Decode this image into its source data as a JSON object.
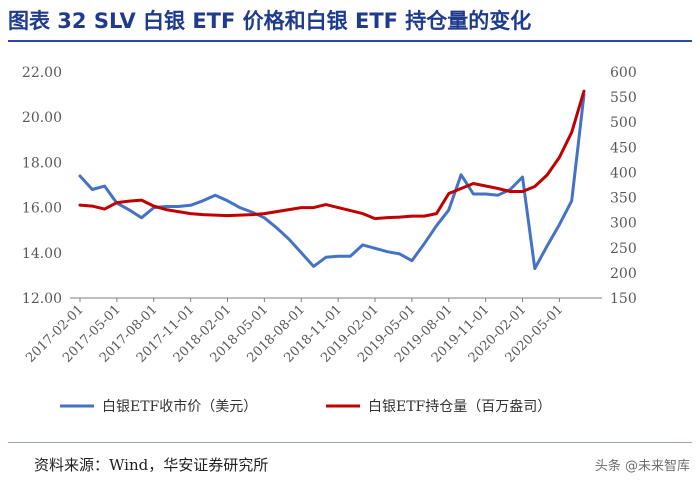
{
  "header": {
    "title": "图表 32 SLV 白银 ETF 价格和白银 ETF 持仓量的变化"
  },
  "footer": {
    "source": "资料来源：Wind，华安证券研究所",
    "watermark": "头条 @未来智库"
  },
  "colors": {
    "price": "#4472c4",
    "holdings": "#c00000",
    "title": "#1f3b8c",
    "axis": "#7f7f7f"
  },
  "chart_data": {
    "type": "line",
    "title": "",
    "x_tick_labels": [
      "2017-02-01",
      "2017-05-01",
      "2017-08-01",
      "2017-11-01",
      "2018-02-01",
      "2018-05-01",
      "2018-08-01",
      "2018-11-01",
      "2019-02-01",
      "2019-05-01",
      "2019-08-01",
      "2019-11-01",
      "2020-02-01",
      "2020-05-01"
    ],
    "y_left": {
      "range": [
        12,
        22
      ],
      "ticks": [
        "12.00",
        "14.00",
        "16.00",
        "18.00",
        "20.00",
        "22.00"
      ]
    },
    "y_right": {
      "range": [
        150,
        600
      ],
      "ticks": [
        "150",
        "200",
        "250",
        "300",
        "350",
        "400",
        "450",
        "500",
        "550",
        "600"
      ]
    },
    "grid": false,
    "legend_position": "bottom",
    "series": [
      {
        "name": "白银ETF收市价（美元）",
        "axis": "left",
        "x": [
          "2017-02",
          "2017-03",
          "2017-04",
          "2017-05",
          "2017-06",
          "2017-07",
          "2017-08",
          "2017-09",
          "2017-10",
          "2017-11",
          "2017-12",
          "2018-01",
          "2018-02",
          "2018-03",
          "2018-04",
          "2018-05",
          "2018-06",
          "2018-07",
          "2018-08",
          "2018-09",
          "2018-10",
          "2018-11",
          "2018-12",
          "2019-01",
          "2019-02",
          "2019-03",
          "2019-04",
          "2019-05",
          "2019-06",
          "2019-07",
          "2019-08",
          "2019-09",
          "2019-10",
          "2019-11",
          "2019-12",
          "2020-01",
          "2020-02",
          "2020-03",
          "2020-04",
          "2020-05",
          "2020-06",
          "2020-07"
        ],
        "values": [
          17.4,
          16.8,
          16.95,
          16.2,
          15.9,
          15.55,
          16.0,
          16.05,
          16.05,
          16.1,
          16.3,
          16.55,
          16.3,
          16.0,
          15.8,
          15.55,
          15.1,
          14.6,
          14.0,
          13.4,
          13.8,
          13.85,
          13.85,
          14.35,
          14.2,
          14.05,
          13.95,
          13.65,
          14.4,
          15.2,
          15.9,
          17.45,
          16.6,
          16.6,
          16.55,
          16.8,
          17.35,
          13.3,
          14.3,
          15.25,
          16.3,
          21.0
        ]
      },
      {
        "name": "白银ETF持仓量（百万盎司）",
        "axis": "right",
        "x": [
          "2017-02",
          "2017-03",
          "2017-04",
          "2017-05",
          "2017-06",
          "2017-07",
          "2017-08",
          "2017-09",
          "2017-10",
          "2017-11",
          "2017-12",
          "2018-01",
          "2018-02",
          "2018-03",
          "2018-04",
          "2018-05",
          "2018-06",
          "2018-07",
          "2018-08",
          "2018-09",
          "2018-10",
          "2018-11",
          "2018-12",
          "2019-01",
          "2019-02",
          "2019-03",
          "2019-04",
          "2019-05",
          "2019-06",
          "2019-07",
          "2019-08",
          "2019-09",
          "2019-10",
          "2019-11",
          "2019-12",
          "2020-01",
          "2020-02",
          "2020-03",
          "2020-04",
          "2020-05",
          "2020-06",
          "2020-07"
        ],
        "values": [
          335,
          333,
          327,
          340,
          343,
          345,
          333,
          326,
          322,
          318,
          316,
          315,
          314,
          315,
          316,
          318,
          322,
          326,
          330,
          330,
          336,
          330,
          324,
          318,
          308,
          310,
          311,
          313,
          313,
          318,
          358,
          368,
          378,
          373,
          368,
          362,
          362,
          372,
          395,
          430,
          480,
          562
        ]
      }
    ]
  }
}
